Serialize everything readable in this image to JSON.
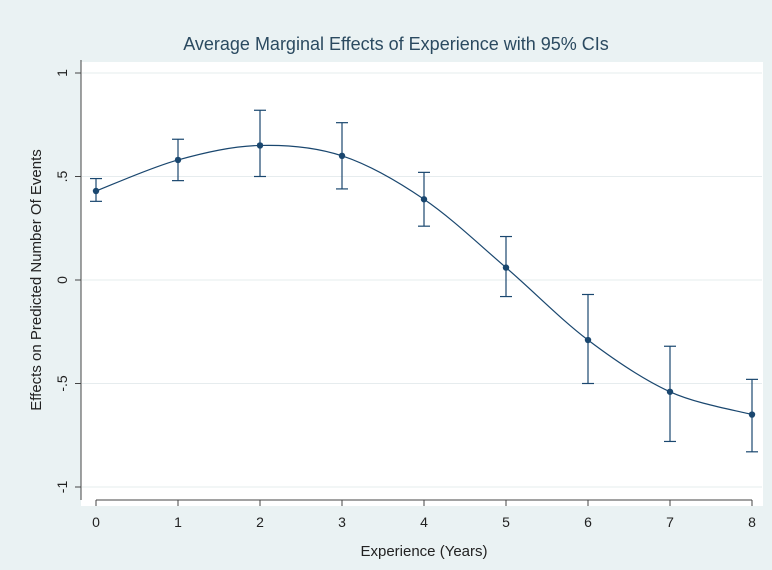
{
  "chart_data": {
    "type": "line",
    "title": "Average Marginal Effects of Experience with 95% CIs",
    "xlabel": "Experience (Years)",
    "ylabel": "Effects on Predicted Number Of Events",
    "xlim": [
      0,
      8
    ],
    "ylim": [
      -1,
      1
    ],
    "x_ticks": [
      0,
      1,
      2,
      3,
      4,
      5,
      6,
      7,
      8
    ],
    "x_tick_labels": [
      "0",
      "1",
      "2",
      "3",
      "4",
      "5",
      "6",
      "7",
      "8"
    ],
    "y_ticks": [
      -1,
      -0.5,
      0,
      0.5,
      1
    ],
    "y_tick_labels": [
      "-1",
      "-.5",
      "0",
      ".5",
      "1"
    ],
    "grid": true,
    "series": [
      {
        "x": [
          0,
          1,
          2,
          3,
          4,
          5,
          6,
          7,
          8
        ],
        "values": [
          0.43,
          0.58,
          0.65,
          0.6,
          0.39,
          0.06,
          -0.29,
          -0.54,
          -0.65
        ],
        "ci_lower": [
          0.38,
          0.48,
          0.5,
          0.44,
          0.26,
          -0.08,
          -0.5,
          -0.78,
          -0.83
        ],
        "ci_upper": [
          0.49,
          0.68,
          0.82,
          0.76,
          0.52,
          0.21,
          -0.07,
          -0.32,
          -0.48
        ]
      }
    ],
    "colors": {
      "series": "#1a476f",
      "plot_background": "#ffffff",
      "outer_background": "#eaf2f3",
      "title": "#2b4a60"
    }
  }
}
